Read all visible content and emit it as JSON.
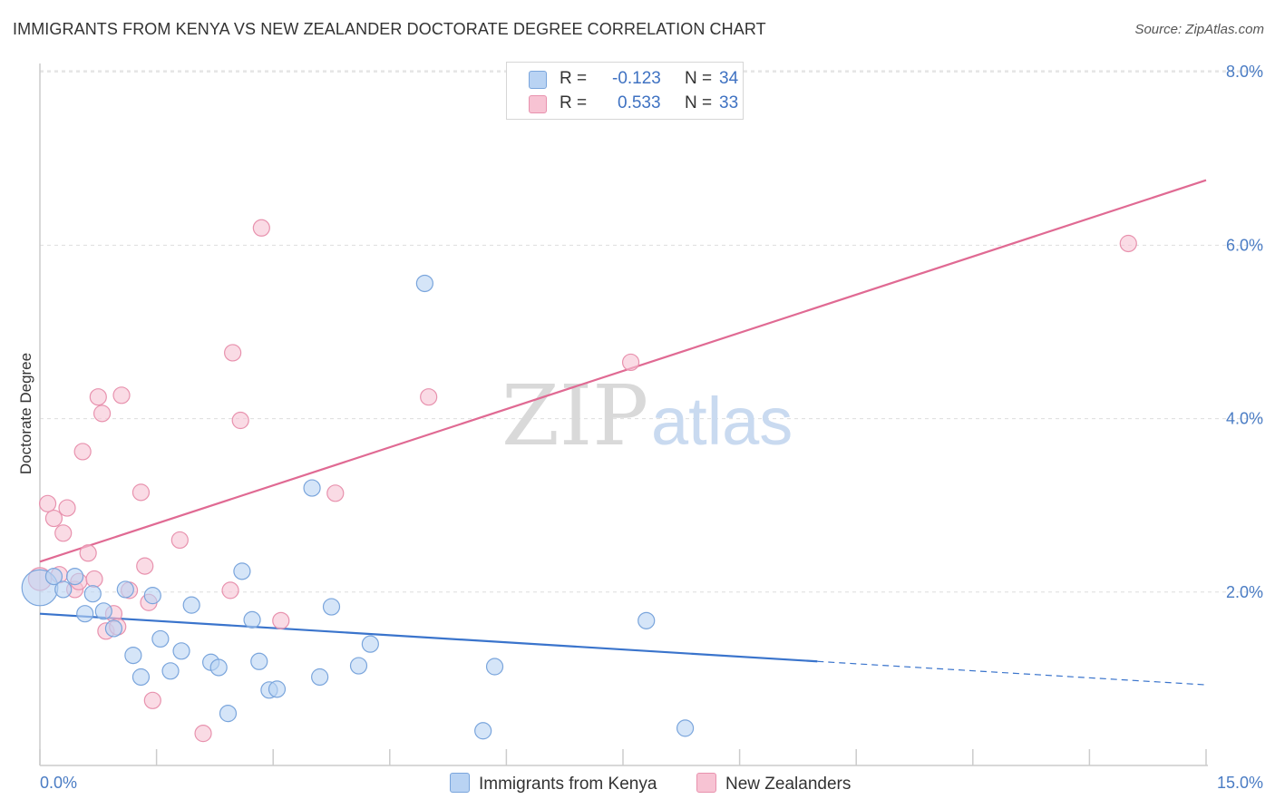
{
  "header": {
    "title": "IMMIGRANTS FROM KENYA VS NEW ZEALANDER DOCTORATE DEGREE CORRELATION CHART",
    "source": "Source: ZipAtlas.com"
  },
  "watermark": {
    "zip": "ZIP",
    "atlas": "atlas"
  },
  "legend": {
    "series1": {
      "r_label": "R =",
      "r_value": "-0.123",
      "n_label": "N =",
      "n_value": "34"
    },
    "series2": {
      "r_label": "R =",
      "r_value": "0.533",
      "n_label": "N =",
      "n_value": "33"
    }
  },
  "colors": {
    "blue_fill": "#b9d3f3",
    "blue_stroke": "#7aa5dc",
    "blue_line": "#3a74cc",
    "pink_fill": "#f7c3d3",
    "pink_stroke": "#e892ae",
    "pink_line": "#e06a93",
    "grid": "#dddddd",
    "tick_text": "#4a7cc4"
  },
  "chart_data": {
    "type": "scatter",
    "title": "IMMIGRANTS FROM KENYA VS NEW ZEALANDER DOCTORATE DEGREE CORRELATION CHART",
    "xlabel": "",
    "ylabel": "Doctorate Degree",
    "xlim": [
      0,
      15
    ],
    "ylim": [
      0,
      8.3
    ],
    "x_tick_labels": [
      "0.0%",
      "15.0%"
    ],
    "y_ticks": [
      2,
      4,
      6,
      8
    ],
    "y_tick_labels": [
      "2.0%",
      "4.0%",
      "6.0%",
      "8.0%"
    ],
    "grid": true,
    "legend_position": "top-center",
    "series": [
      {
        "name": "Immigrants from Kenya",
        "color": "#b9d3f3",
        "r": -0.123,
        "n": 34,
        "trend": {
          "x0": 0,
          "y0": 1.75,
          "x1": 10.0,
          "y1": 1.2,
          "dashed_to_x": 15.0,
          "dashed_to_y": 0.93
        },
        "points": [
          [
            0.0,
            2.05,
            2.2
          ],
          [
            0.18,
            2.18,
            1
          ],
          [
            0.3,
            2.03,
            1
          ],
          [
            0.45,
            2.18,
            1
          ],
          [
            0.58,
            1.75,
            1
          ],
          [
            0.68,
            1.98,
            1
          ],
          [
            0.82,
            1.78,
            1
          ],
          [
            0.95,
            1.58,
            1
          ],
          [
            1.1,
            2.03,
            1
          ],
          [
            1.2,
            1.27,
            1
          ],
          [
            1.3,
            1.02,
            1
          ],
          [
            1.45,
            1.96,
            1
          ],
          [
            1.55,
            1.46,
            1
          ],
          [
            1.68,
            1.09,
            1
          ],
          [
            1.82,
            1.32,
            1
          ],
          [
            1.95,
            1.85,
            1
          ],
          [
            2.2,
            1.19,
            1
          ],
          [
            2.3,
            1.13,
            1
          ],
          [
            2.42,
            0.6,
            1
          ],
          [
            2.6,
            2.24,
            1
          ],
          [
            2.73,
            1.68,
            1
          ],
          [
            2.82,
            1.2,
            1
          ],
          [
            2.95,
            0.87,
            1
          ],
          [
            3.05,
            0.88,
            1
          ],
          [
            3.5,
            3.2,
            1
          ],
          [
            3.6,
            1.02,
            1
          ],
          [
            3.75,
            1.83,
            1
          ],
          [
            4.1,
            1.15,
            1
          ],
          [
            4.25,
            1.4,
            1
          ],
          [
            4.95,
            5.56,
            1
          ],
          [
            5.7,
            0.4,
            1
          ],
          [
            5.85,
            1.14,
            1
          ],
          [
            7.8,
            1.67,
            1
          ],
          [
            8.3,
            0.43,
            1
          ]
        ]
      },
      {
        "name": "New Zealanders",
        "color": "#f7c3d3",
        "r": 0.533,
        "n": 33,
        "trend": {
          "x0": 0,
          "y0": 2.35,
          "x1": 15.0,
          "y1": 6.75
        },
        "points": [
          [
            0.0,
            2.15,
            1.4
          ],
          [
            0.1,
            3.02,
            1
          ],
          [
            0.18,
            2.85,
            1
          ],
          [
            0.25,
            2.2,
            1
          ],
          [
            0.3,
            2.68,
            1
          ],
          [
            0.35,
            2.97,
            1
          ],
          [
            0.45,
            2.03,
            1
          ],
          [
            0.5,
            2.12,
            1
          ],
          [
            0.55,
            3.62,
            1
          ],
          [
            0.62,
            2.45,
            1
          ],
          [
            0.7,
            2.15,
            1
          ],
          [
            0.75,
            4.25,
            1
          ],
          [
            0.8,
            4.06,
            1
          ],
          [
            0.85,
            1.55,
            1
          ],
          [
            0.95,
            1.75,
            1
          ],
          [
            1.0,
            1.6,
            1
          ],
          [
            1.05,
            4.27,
            1
          ],
          [
            1.15,
            2.02,
            1
          ],
          [
            1.3,
            3.15,
            1
          ],
          [
            1.35,
            2.3,
            1
          ],
          [
            1.4,
            1.88,
            1
          ],
          [
            1.45,
            0.75,
            1
          ],
          [
            1.8,
            2.6,
            1
          ],
          [
            2.1,
            0.37,
            1
          ],
          [
            2.45,
            2.02,
            1
          ],
          [
            2.48,
            4.76,
            1
          ],
          [
            2.58,
            3.98,
            1
          ],
          [
            2.85,
            6.2,
            1
          ],
          [
            3.1,
            1.67,
            1
          ],
          [
            3.8,
            3.14,
            1
          ],
          [
            5.0,
            4.25,
            1
          ],
          [
            7.6,
            4.65,
            1
          ],
          [
            14.0,
            6.02,
            1
          ]
        ]
      }
    ]
  }
}
